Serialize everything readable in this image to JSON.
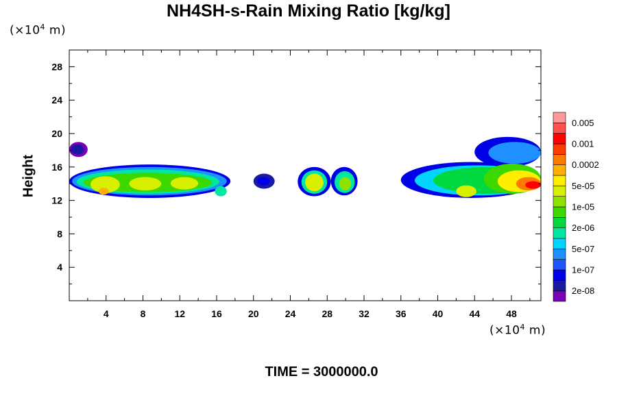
{
  "title": "NH4SH-s-Rain Mixing Ratio [kg/kg]",
  "time_label": "TIME = 3000000.0",
  "y_unit": {
    "prefix": "(×10",
    "exp": "4",
    "suffix": " m)"
  },
  "x_unit": {
    "prefix": "(×10",
    "exp": "4",
    "suffix": " m)"
  },
  "ylabel": "Height",
  "chart_data": {
    "type": "heatmap",
    "title": "NH4SH-s-Rain Mixing Ratio [kg/kg]",
    "xlabel": "",
    "ylabel": "Height",
    "xlim": [
      0,
      51.2
    ],
    "ylim": [
      0,
      30
    ],
    "x_ticks": [
      4,
      8,
      12,
      16,
      20,
      24,
      28,
      32,
      36,
      40,
      44,
      48
    ],
    "y_ticks": [
      4,
      8,
      12,
      16,
      20,
      24,
      28
    ],
    "colorbar": {
      "labels": [
        "0.005",
        "0.001",
        "0.0002",
        "5e-05",
        "1e-05",
        "2e-06",
        "5e-07",
        "1e-07",
        "2e-08"
      ],
      "colors": [
        "#7a00b8",
        "#1a1aa0",
        "#0000e6",
        "#1f55ff",
        "#1e90ff",
        "#00d4ff",
        "#00e8a0",
        "#00d840",
        "#3cd800",
        "#90e000",
        "#d8f000",
        "#ffee00",
        "#ffb000",
        "#ff7a00",
        "#ff3a00",
        "#ff0000",
        "#ff5050",
        "#ff9a9a"
      ]
    },
    "cells": [
      {
        "x": 0.0,
        "y": 17.2,
        "w": 2.0,
        "h": 1.8,
        "c": 0
      },
      {
        "x": 0.2,
        "y": 17.5,
        "w": 1.4,
        "h": 1.2,
        "c": 1
      },
      {
        "x": 0.0,
        "y": 12.3,
        "w": 17.5,
        "h": 4.0,
        "c": 2
      },
      {
        "x": 0.3,
        "y": 12.6,
        "w": 16.8,
        "h": 3.4,
        "c": 4
      },
      {
        "x": 0.8,
        "y": 12.8,
        "w": 15.5,
        "h": 2.9,
        "c": 6
      },
      {
        "x": 1.5,
        "y": 13.0,
        "w": 14.0,
        "h": 2.3,
        "c": 8
      },
      {
        "x": 2.3,
        "y": 12.9,
        "w": 3.2,
        "h": 2.0,
        "c": 10
      },
      {
        "x": 3.2,
        "y": 12.7,
        "w": 1.1,
        "h": 0.8,
        "c": 12
      },
      {
        "x": 6.5,
        "y": 13.2,
        "w": 3.5,
        "h": 1.6,
        "c": 10
      },
      {
        "x": 11.0,
        "y": 13.3,
        "w": 3.0,
        "h": 1.5,
        "c": 10
      },
      {
        "x": 15.8,
        "y": 12.5,
        "w": 1.3,
        "h": 1.2,
        "c": 6
      },
      {
        "x": 20.0,
        "y": 13.4,
        "w": 2.3,
        "h": 1.8,
        "c": 1
      },
      {
        "x": 20.4,
        "y": 13.8,
        "w": 1.4,
        "h": 1.0,
        "c": 2
      },
      {
        "x": 24.8,
        "y": 12.5,
        "w": 3.6,
        "h": 3.5,
        "c": 2
      },
      {
        "x": 25.2,
        "y": 12.8,
        "w": 2.8,
        "h": 2.8,
        "c": 6
      },
      {
        "x": 25.6,
        "y": 13.1,
        "w": 2.0,
        "h": 2.1,
        "c": 10
      },
      {
        "x": 28.4,
        "y": 12.6,
        "w": 2.9,
        "h": 3.4,
        "c": 2
      },
      {
        "x": 28.8,
        "y": 12.9,
        "w": 2.2,
        "h": 2.6,
        "c": 6
      },
      {
        "x": 29.3,
        "y": 13.2,
        "w": 1.3,
        "h": 1.6,
        "c": 9
      },
      {
        "x": 36.0,
        "y": 12.3,
        "w": 15.2,
        "h": 4.3,
        "c": 2
      },
      {
        "x": 37.5,
        "y": 12.6,
        "w": 13.7,
        "h": 3.6,
        "c": 5
      },
      {
        "x": 39.5,
        "y": 12.8,
        "w": 11.7,
        "h": 3.2,
        "c": 7
      },
      {
        "x": 44.0,
        "y": 16.0,
        "w": 7.2,
        "h": 3.6,
        "c": 2
      },
      {
        "x": 45.5,
        "y": 16.4,
        "w": 5.7,
        "h": 2.6,
        "c": 4
      },
      {
        "x": 45.0,
        "y": 12.8,
        "w": 6.2,
        "h": 3.6,
        "c": 8
      },
      {
        "x": 46.5,
        "y": 13.0,
        "w": 4.7,
        "h": 2.6,
        "c": 11
      },
      {
        "x": 42.0,
        "y": 12.4,
        "w": 2.2,
        "h": 1.4,
        "c": 10
      },
      {
        "x": 48.5,
        "y": 13.2,
        "w": 2.7,
        "h": 1.6,
        "c": 13
      },
      {
        "x": 49.5,
        "y": 13.4,
        "w": 1.7,
        "h": 0.9,
        "c": 15
      }
    ]
  }
}
